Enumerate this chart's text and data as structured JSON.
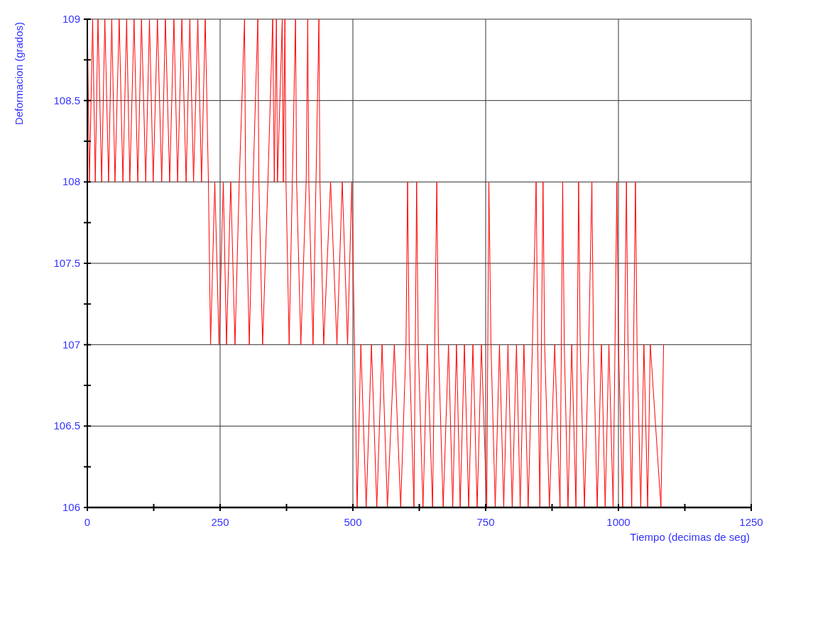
{
  "chart_data": {
    "type": "line",
    "xlabel": "Tiempo (decimas de seg)",
    "ylabel": "Deformacion (grados)",
    "xlim": [
      0,
      1250
    ],
    "xticks": [
      0,
      {
        "value": 125,
        "label": null
      },
      250,
      {
        "value": 375,
        "label": null
      },
      500,
      {
        "value": 625,
        "label": null
      },
      750,
      {
        "value": 875,
        "label": null
      },
      1000,
      {
        "value": 1125,
        "label": null
      },
      1250
    ],
    "ylim": [
      106,
      109
    ],
    "yticks": [
      106,
      {
        "value": 106.25,
        "label": null
      },
      106.5,
      {
        "value": 106.75,
        "label": null
      },
      107,
      {
        "value": 107.25,
        "label": null
      },
      107.5,
      {
        "value": 107.75,
        "label": null
      },
      108,
      {
        "value": 108.25,
        "label": null
      },
      108.5,
      {
        "value": 108.75,
        "label": null
      },
      109
    ],
    "grid": true,
    "marker": "none",
    "line_style": "solid",
    "series": [
      {
        "color": "#ff0000",
        "x": [
          0,
          4,
          10,
          15,
          20,
          27,
          33,
          40,
          46,
          52,
          60,
          67,
          74,
          80,
          88,
          95,
          102,
          110,
          117,
          124,
          132,
          140,
          147,
          155,
          163,
          170,
          178,
          186,
          193,
          200,
          208,
          215,
          222,
          228,
          232,
          240,
          248,
          256,
          262,
          270,
          278,
          286,
          296,
          298,
          305,
          312,
          321,
          323,
          330,
          340,
          349,
          352,
          356,
          358,
          367,
          369,
          372,
          374,
          380,
          392,
          394,
          402,
          412,
          415,
          417,
          425,
          436,
          438,
          445,
          458,
          470,
          480,
          490,
          498,
          508,
          515,
          525,
          535,
          545,
          555,
          565,
          578,
          590,
          600,
          603,
          606,
          615,
          620,
          623,
          632,
          640,
          650,
          658,
          661,
          670,
          680,
          688,
          695,
          702,
          710,
          718,
          726,
          734,
          742,
          752,
          756,
          760,
          768,
          776,
          784,
          792,
          800,
          808,
          815,
          822,
          830,
          838,
          845,
          848,
          852,
          858,
          861,
          870,
          880,
          890,
          895,
          898,
          905,
          912,
          920,
          925,
          928,
          936,
          944,
          950,
          953,
          960,
          968,
          975,
          982,
          990,
          997,
          1000,
          1008,
          1015,
          1018,
          1025,
          1032,
          1035,
          1042,
          1048,
          1055,
          1060,
          1080,
          1085
        ],
        "values": [
          109,
          108,
          109,
          108,
          109,
          108,
          109,
          108,
          109,
          108,
          109,
          108,
          109,
          108,
          109,
          108,
          109,
          108,
          109,
          108,
          109,
          108,
          109,
          108,
          109,
          108,
          109,
          108,
          109,
          108,
          109,
          108,
          109,
          108,
          107,
          108,
          107,
          108,
          107,
          108,
          107,
          108,
          109,
          108,
          107,
          108,
          109,
          108,
          107,
          108,
          109,
          108,
          109,
          108,
          109,
          108,
          109,
          108,
          107,
          109,
          108,
          107,
          108,
          109,
          108,
          107,
          109,
          108,
          107,
          108,
          107,
          108,
          107,
          108,
          106,
          107,
          106,
          107,
          106,
          107,
          106,
          107,
          106,
          107,
          108,
          107,
          106,
          108,
          107,
          106,
          107,
          106,
          108,
          107,
          106,
          107,
          106,
          107,
          106,
          107,
          106,
          107,
          106,
          107,
          106,
          108,
          107,
          106,
          107,
          106,
          107,
          106,
          107,
          106,
          107,
          106,
          107,
          108,
          107,
          106,
          108,
          107,
          106,
          107,
          106,
          108,
          107,
          106,
          107,
          106,
          108,
          107,
          106,
          107,
          108,
          107,
          106,
          107,
          106,
          107,
          106,
          108,
          107,
          106,
          108,
          107,
          106,
          108,
          107,
          106,
          107,
          106,
          107,
          106,
          107
        ]
      }
    ]
  }
}
